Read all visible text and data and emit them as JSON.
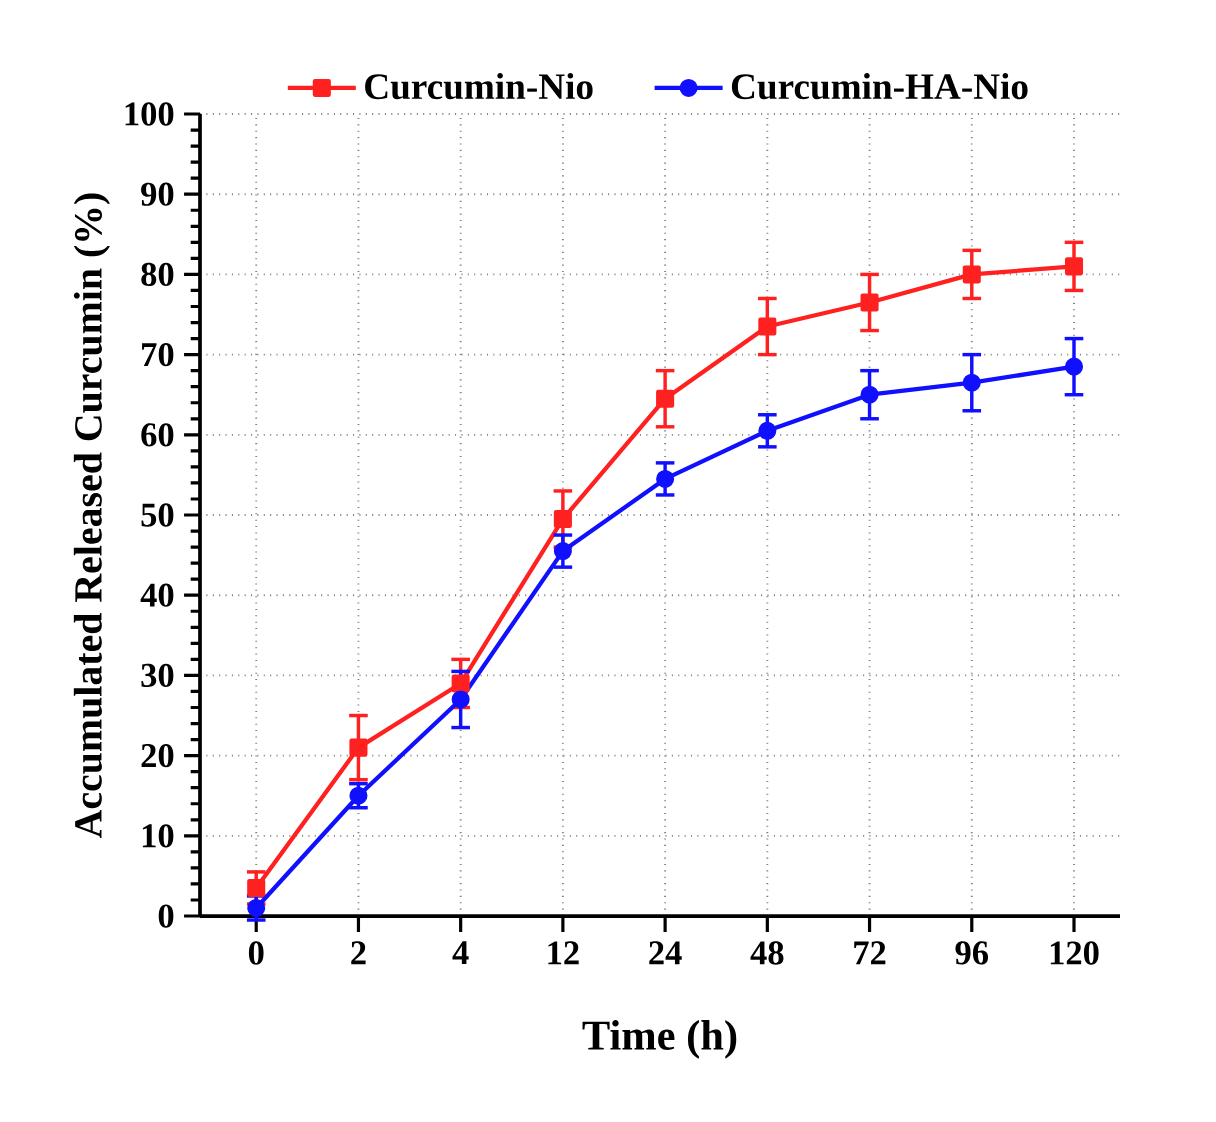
{
  "chart_data": {
    "type": "line",
    "xlabel": "Time (h)",
    "ylabel": "Accumulated Released Curcumin (%)",
    "categories": [
      "0",
      "2",
      "4",
      "12",
      "24",
      "48",
      "72",
      "96",
      "120"
    ],
    "series": [
      {
        "name": "Curcumin-Nio",
        "color": "#ff2020",
        "marker": "square",
        "values": [
          3.5,
          21,
          29,
          49.5,
          64.5,
          73.5,
          76.5,
          80,
          81
        ],
        "errors": [
          2,
          4,
          3,
          3.5,
          3.5,
          3.5,
          3.5,
          3,
          3
        ]
      },
      {
        "name": "Curcumin-HA-Nio",
        "color": "#1010ff",
        "marker": "circle",
        "values": [
          1,
          15,
          27,
          45.5,
          54.5,
          60.5,
          65,
          66.5,
          68.5
        ],
        "errors": [
          1.5,
          1.5,
          3.5,
          2,
          2,
          2,
          3,
          3.5,
          3.5
        ]
      }
    ],
    "ylim": [
      0,
      100
    ],
    "yticks": [
      0,
      10,
      20,
      30,
      40,
      50,
      60,
      70,
      80,
      90,
      100
    ],
    "grid": true,
    "legend": "top",
    "line_style": "solid"
  }
}
